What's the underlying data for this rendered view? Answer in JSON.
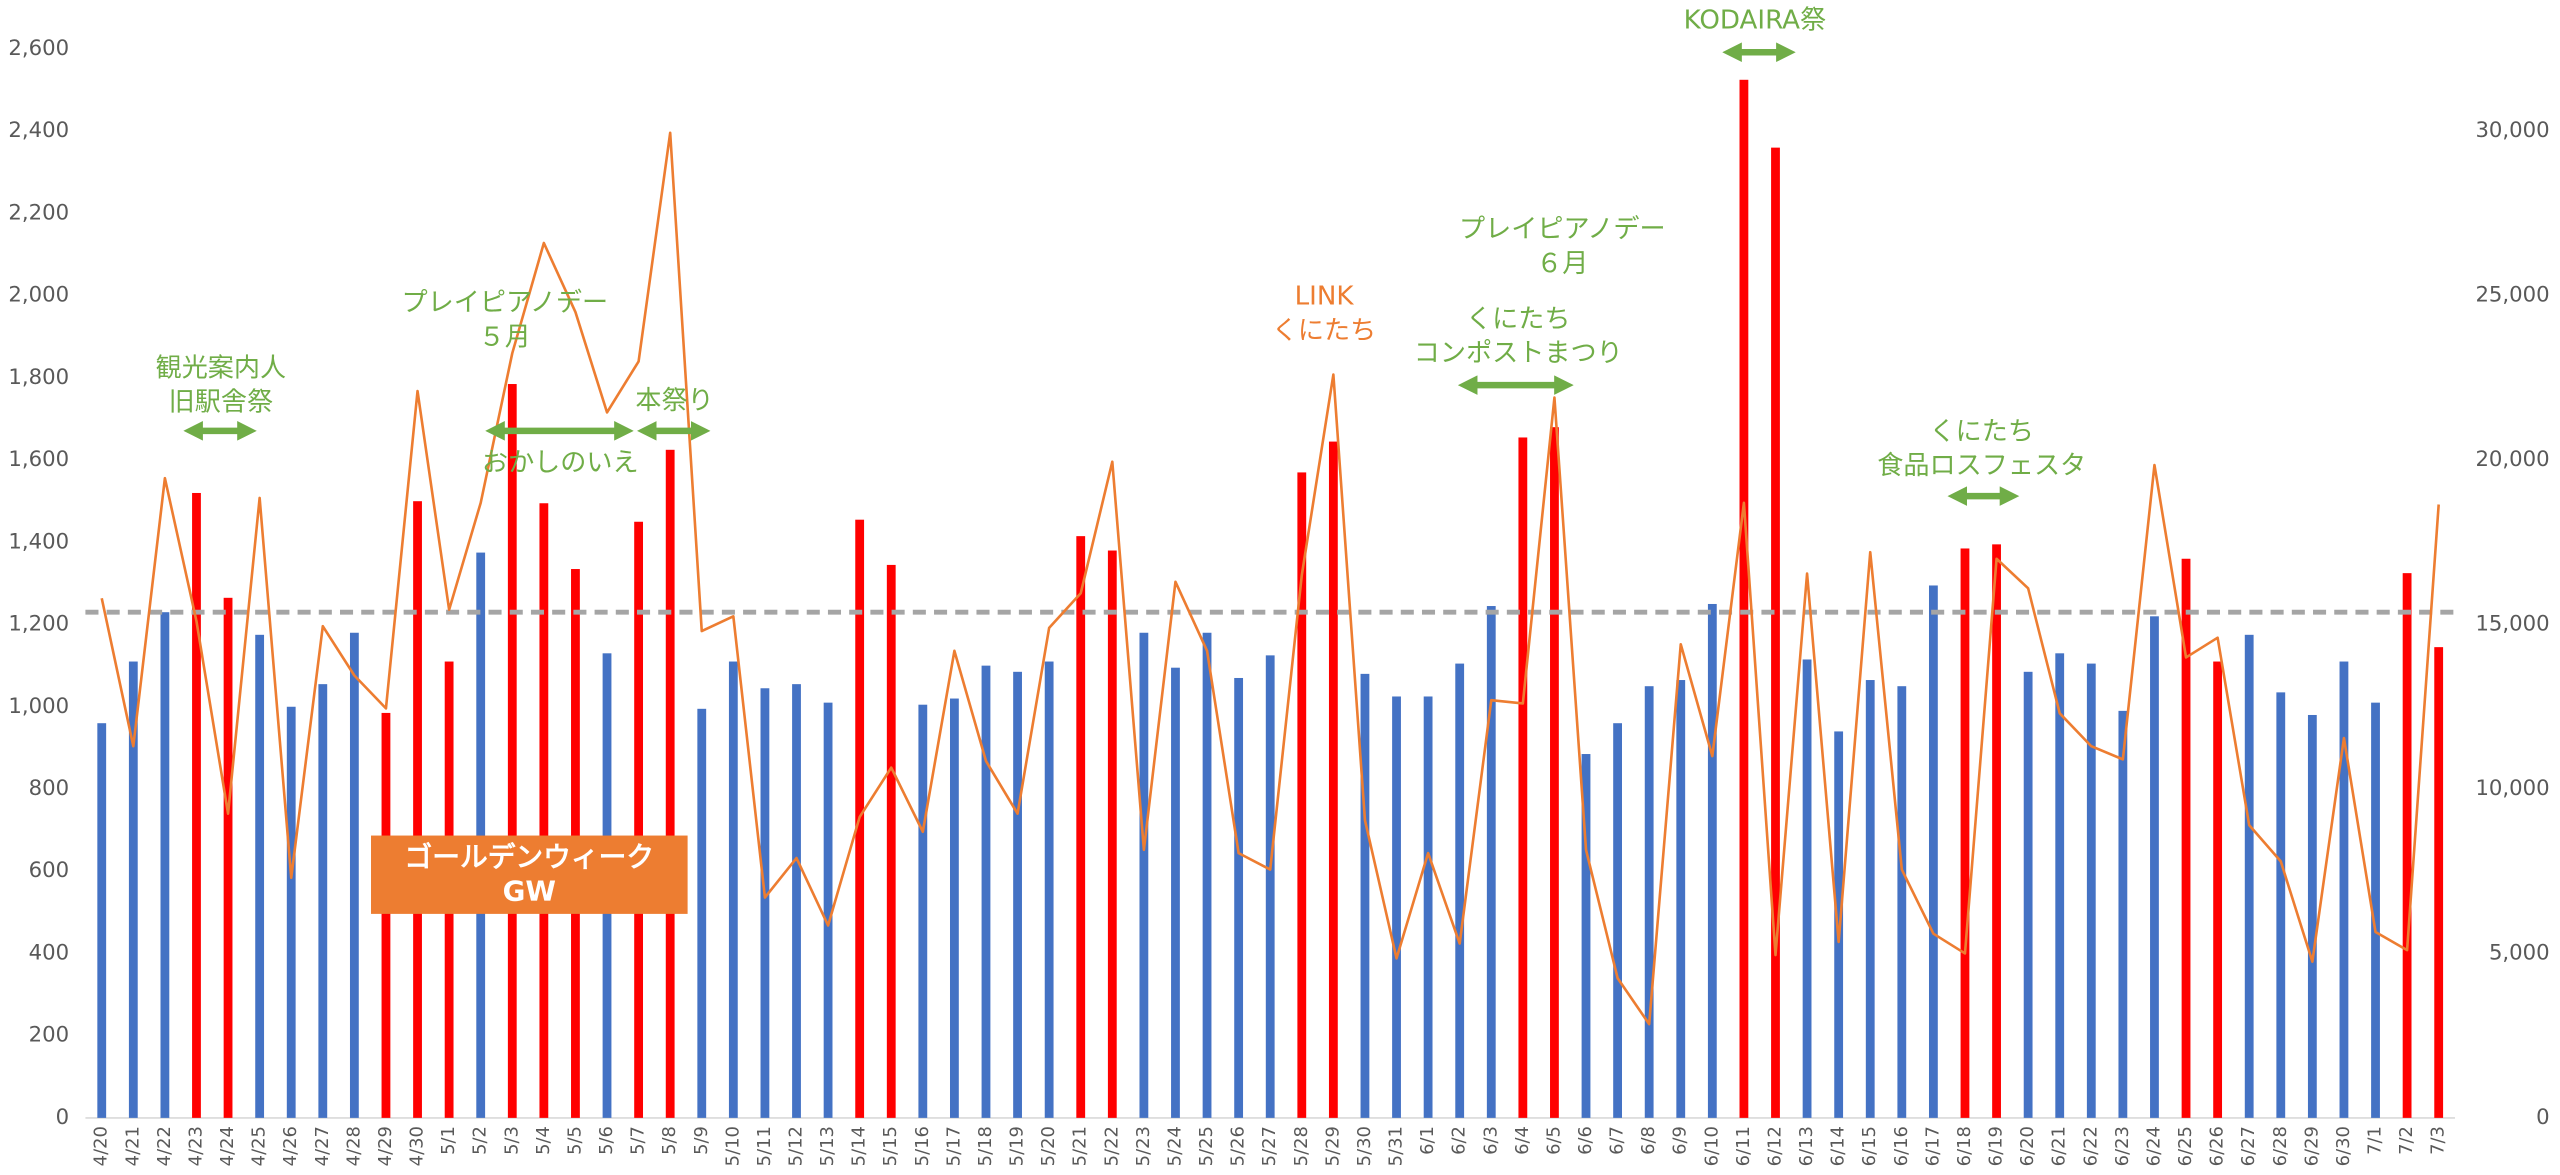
{
  "chart_data": {
    "type": "bar-line",
    "categories": [
      "4/20",
      "4/21",
      "4/22",
      "4/23",
      "4/24",
      "4/25",
      "4/26",
      "4/27",
      "4/28",
      "4/29",
      "4/30",
      "5/1",
      "5/2",
      "5/3",
      "5/4",
      "5/5",
      "5/6",
      "5/7",
      "5/8",
      "5/9",
      "5/10",
      "5/11",
      "5/12",
      "5/13",
      "5/14",
      "5/15",
      "5/16",
      "5/17",
      "5/18",
      "5/19",
      "5/20",
      "5/21",
      "5/22",
      "5/23",
      "5/24",
      "5/25",
      "5/26",
      "5/27",
      "5/28",
      "5/29",
      "5/30",
      "5/31",
      "6/1",
      "6/2",
      "6/3",
      "6/4",
      "6/5",
      "6/6",
      "6/7",
      "6/8",
      "6/9",
      "6/10",
      "6/11",
      "6/12",
      "6/13",
      "6/14",
      "6/15",
      "6/16",
      "6/17",
      "6/18",
      "6/19",
      "6/20",
      "6/21",
      "6/22",
      "6/23",
      "6/24",
      "6/25",
      "6/26",
      "6/27",
      "6/28",
      "6/29",
      "6/30",
      "7/1",
      "7/2",
      "7/3"
    ],
    "series": [
      {
        "type": "bar",
        "axis": "y",
        "values": [
          960,
          1110,
          1230,
          1520,
          1265,
          1175,
          1000,
          1055,
          1180,
          985,
          1500,
          1110,
          1375,
          1785,
          1495,
          1335,
          1130,
          1450,
          1625,
          995,
          1110,
          1045,
          1055,
          1010,
          1455,
          1345,
          1005,
          1020,
          1100,
          1085,
          1110,
          1415,
          1380,
          1180,
          1095,
          1180,
          1070,
          1125,
          1570,
          1645,
          1080,
          1025,
          1025,
          1105,
          1245,
          1655,
          1680,
          885,
          960,
          1050,
          1065,
          1250,
          2525,
          2360,
          1115,
          940,
          1065,
          1050,
          1295,
          1385,
          1395,
          1085,
          1130,
          1105,
          990,
          1220,
          1360,
          1110,
          1175,
          1035,
          980,
          1110,
          1010,
          1325,
          1145
        ],
        "colors": [
          "#4472c4",
          "#4472c4",
          "#4472c4",
          "#ff0000",
          "#ff0000",
          "#4472c4",
          "#4472c4",
          "#4472c4",
          "#4472c4",
          "#ff0000",
          "#ff0000",
          "#ff0000",
          "#4472c4",
          "#ff0000",
          "#ff0000",
          "#ff0000",
          "#4472c4",
          "#ff0000",
          "#ff0000",
          "#4472c4",
          "#4472c4",
          "#4472c4",
          "#4472c4",
          "#4472c4",
          "#ff0000",
          "#ff0000",
          "#4472c4",
          "#4472c4",
          "#4472c4",
          "#4472c4",
          "#4472c4",
          "#ff0000",
          "#ff0000",
          "#4472c4",
          "#4472c4",
          "#4472c4",
          "#4472c4",
          "#4472c4",
          "#ff0000",
          "#ff0000",
          "#4472c4",
          "#4472c4",
          "#4472c4",
          "#4472c4",
          "#4472c4",
          "#ff0000",
          "#ff0000",
          "#4472c4",
          "#4472c4",
          "#4472c4",
          "#4472c4",
          "#4472c4",
          "#ff0000",
          "#ff0000",
          "#4472c4",
          "#4472c4",
          "#4472c4",
          "#4472c4",
          "#4472c4",
          "#ff0000",
          "#ff0000",
          "#4472c4",
          "#4472c4",
          "#4472c4",
          "#4472c4",
          "#4472c4",
          "#ff0000",
          "#ff0000",
          "#4472c4",
          "#4472c4",
          "#4472c4",
          "#4472c4",
          "#4472c4",
          "#ff0000",
          "#ff0000"
        ]
      },
      {
        "type": "line",
        "axis": "y2",
        "color": "#ed7d31",
        "values": [
          15800,
          11300,
          19450,
          15100,
          9250,
          18850,
          7300,
          14950,
          13450,
          12450,
          22100,
          15450,
          18700,
          23250,
          26600,
          24500,
          21450,
          23000,
          29950,
          14800,
          15250,
          6700,
          7900,
          5850,
          9150,
          10650,
          8700,
          14200,
          10850,
          9250,
          14900,
          15950,
          19950,
          8150,
          16300,
          14200,
          8050,
          7550,
          16500,
          22600,
          9050,
          4850,
          8050,
          5300,
          12700,
          12600,
          21900,
          8150,
          4250,
          2850,
          14400,
          11000,
          18700,
          4950,
          16550,
          5350,
          17200,
          7550,
          5600,
          5000,
          17000,
          16100,
          12300,
          11300,
          10900,
          19850,
          14000,
          14600,
          8900,
          7800,
          4750,
          11550,
          5650,
          5100,
          18650
        ]
      }
    ],
    "reference_line": {
      "value": 1230,
      "color": "#a5a5a5"
    },
    "ylim": [
      0,
      2600
    ],
    "yticks": [
      0,
      200,
      400,
      600,
      800,
      {
        "value": 1000,
        "label": "1,000"
      },
      {
        "value": 1200,
        "label": "1,200"
      },
      {
        "value": 1400,
        "label": "1,400"
      },
      {
        "value": 1600,
        "label": "1,600"
      },
      {
        "value": 1800,
        "label": "1,800"
      },
      {
        "value": 2000,
        "label": "2,000"
      },
      {
        "value": 2200,
        "label": "2,200"
      },
      {
        "value": 2400,
        "label": "2,400"
      },
      {
        "value": 2600,
        "label": "2,600"
      }
    ],
    "y2lim": [
      0,
      32500
    ],
    "y2ticks": [
      0,
      {
        "value": 5000,
        "label": "5,000"
      },
      {
        "value": 10000,
        "label": "10,000"
      },
      {
        "value": 15000,
        "label": "15,000"
      },
      {
        "value": 20000,
        "label": "20,000"
      },
      {
        "value": 25000,
        "label": "25,000"
      },
      {
        "value": 30000,
        "label": "30,000"
      }
    ],
    "annotations": [
      {
        "lines": [
          "観光案内人",
          "旧駅舎祭"
        ],
        "color": "#70ad47"
      },
      {
        "lines": [
          "プレイピアノデー",
          "５月"
        ],
        "color": "#70ad47"
      },
      {
        "lines": [
          "おかしのいえ"
        ],
        "color": "#70ad47"
      },
      {
        "lines": [
          "本祭り"
        ],
        "color": "#70ad47"
      },
      {
        "lines": [
          "LINK",
          "くにたち"
        ],
        "color": "#ed7d31"
      },
      {
        "lines": [
          "プレイピアノデー",
          "６月"
        ],
        "color": "#70ad47"
      },
      {
        "lines": [
          "くにたち",
          "コンポストまつり"
        ],
        "color": "#70ad47"
      },
      {
        "lines": [
          "KODAIRA祭"
        ],
        "color": "#70ad47"
      },
      {
        "lines": [
          "くにたち",
          "食品ロスフェスタ"
        ],
        "color": "#70ad47"
      }
    ],
    "callout": {
      "lines": [
        "ゴールデンウィーク",
        "GW"
      ],
      "color": "#ed7d31"
    }
  }
}
